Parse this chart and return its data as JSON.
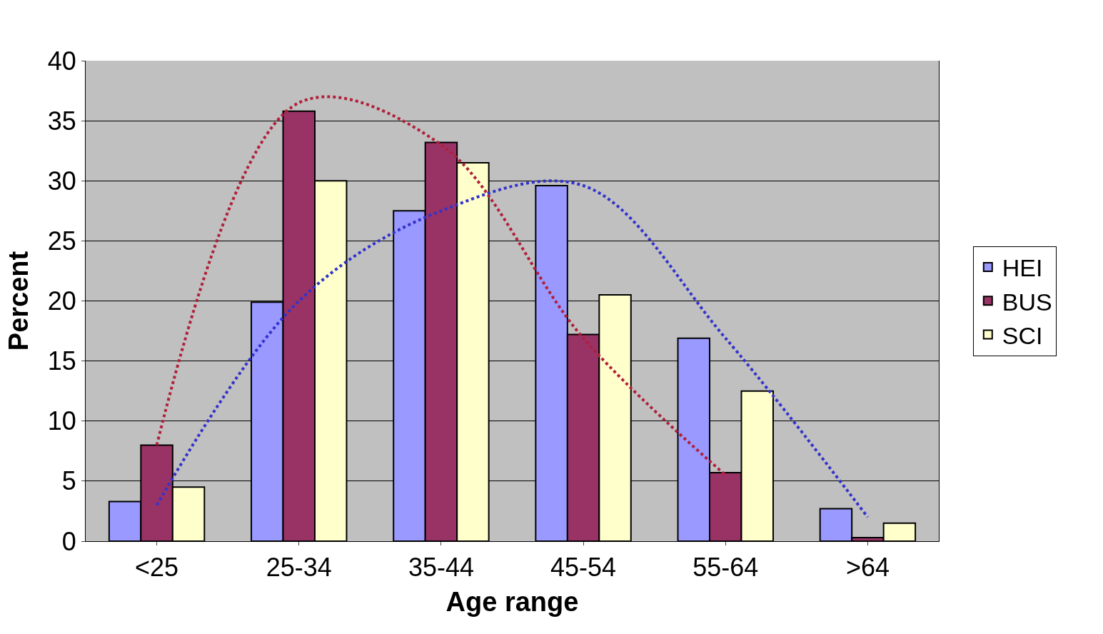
{
  "chart_data": {
    "type": "bar",
    "xlabel": "Age range",
    "ylabel": "Percent",
    "categories": [
      "<25",
      "25-34",
      "35-44",
      "45-54",
      "55-64",
      ">64"
    ],
    "series": [
      {
        "name": "HEI",
        "color": "#9999ff",
        "values": [
          3.3,
          19.9,
          27.5,
          29.6,
          16.9,
          2.7
        ]
      },
      {
        "name": "BUS",
        "color": "#993366",
        "values": [
          8.0,
          35.8,
          33.2,
          17.2,
          5.7,
          0.3
        ]
      },
      {
        "name": "SCI",
        "color": "#ffffcc",
        "values": [
          4.5,
          30.0,
          31.5,
          20.5,
          12.5,
          1.5
        ]
      },
      {
        "type": "line",
        "color": "#b0203a",
        "line_style": "dotted",
        "values": [
          8.0,
          36.5,
          33.0,
          16.9,
          5.5,
          null
        ]
      },
      {
        "type": "line",
        "color": "#3333cc",
        "line_style": "dotted",
        "values": [
          3.0,
          20.0,
          27.5,
          29.6,
          16.9,
          2.0
        ]
      }
    ],
    "ylim": [
      0,
      40
    ],
    "yticks": [
      0,
      5,
      10,
      15,
      20,
      25,
      30,
      35,
      40
    ],
    "grid": "y",
    "legend": "right",
    "marker": "none"
  }
}
